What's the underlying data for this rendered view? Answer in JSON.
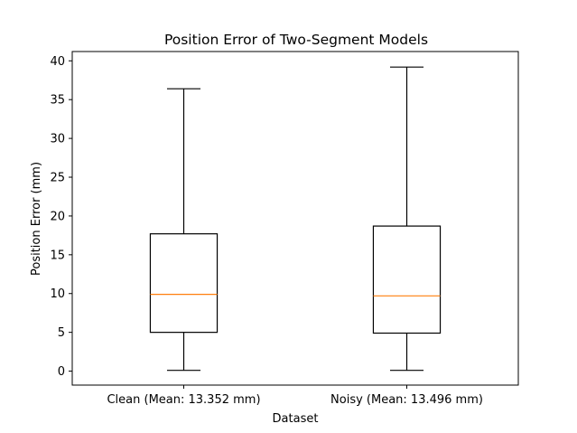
{
  "chart_data": {
    "type": "box",
    "title": "Position Error of Two-Segment Models",
    "xlabel": "Dataset",
    "ylabel": "Position Error (mm)",
    "ylim": [
      -1.8,
      41.2
    ],
    "yticks": [
      0,
      5,
      10,
      15,
      20,
      25,
      30,
      35,
      40
    ],
    "grid": false,
    "categories": [
      "Clean (Mean: 13.352 mm)",
      "Noisy (Mean: 13.496 mm)"
    ],
    "boxes": [
      {
        "whisker_low": 0.1,
        "q1": 5.0,
        "median": 9.9,
        "q3": 17.7,
        "whisker_high": 36.4
      },
      {
        "whisker_low": 0.1,
        "q1": 4.9,
        "median": 9.7,
        "q3": 18.7,
        "whisker_high": 39.2
      }
    ],
    "colors": {
      "box": "#000000",
      "median": "#ff7f0e"
    }
  }
}
